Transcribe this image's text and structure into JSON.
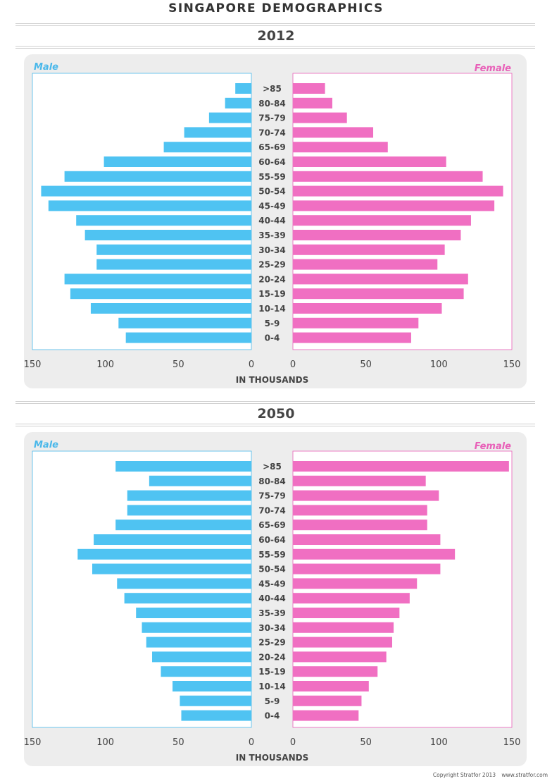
{
  "title": "SINGAPORE DEMOGRAPHICS",
  "footer": {
    "copyright": "Copyright Stratfor 2013",
    "site": "www.stratfor.com"
  },
  "colors": {
    "male": "#4fc3f2",
    "female": "#f06fc2",
    "male_label": "#4ab8ea",
    "female_label": "#e860b8"
  },
  "chart_data": [
    {
      "type": "bar",
      "title": "2012",
      "xlabel": "IN THOUSANDS",
      "xlim": [
        0,
        150
      ],
      "ticks": [
        "150",
        "100",
        "50",
        "0"
      ],
      "categories": [
        ">85",
        "80-84",
        "75-79",
        "70-74",
        "65-69",
        "60-64",
        "55-59",
        "50-54",
        "45-49",
        "40-44",
        "35-39",
        "30-34",
        "25-29",
        "20-24",
        "15-19",
        "10-14",
        "5-9",
        "0-4"
      ],
      "series": [
        {
          "name": "Male",
          "values": [
            11,
            18,
            29,
            46,
            60,
            101,
            128,
            144,
            139,
            120,
            114,
            106,
            106,
            128,
            124,
            110,
            91,
            86
          ]
        },
        {
          "name": "Female",
          "values": [
            22,
            27,
            37,
            55,
            65,
            105,
            130,
            144,
            138,
            122,
            115,
            104,
            99,
            120,
            117,
            102,
            86,
            81
          ]
        }
      ]
    },
    {
      "type": "bar",
      "title": "2050",
      "xlabel": "IN THOUSANDS",
      "xlim": [
        0,
        150
      ],
      "ticks": [
        "150",
        "100",
        "50",
        "0"
      ],
      "categories": [
        ">85",
        "80-84",
        "75-79",
        "70-74",
        "65-69",
        "60-64",
        "55-59",
        "50-54",
        "45-49",
        "40-44",
        "35-39",
        "30-34",
        "25-29",
        "20-24",
        "15-19",
        "10-14",
        "5-9",
        "0-4"
      ],
      "series": [
        {
          "name": "Male",
          "values": [
            93,
            70,
            85,
            85,
            93,
            108,
            119,
            109,
            92,
            87,
            79,
            75,
            72,
            68,
            62,
            54,
            49,
            48
          ]
        },
        {
          "name": "Female",
          "values": [
            148,
            91,
            100,
            92,
            92,
            101,
            111,
            101,
            85,
            80,
            73,
            69,
            68,
            64,
            58,
            52,
            47,
            45
          ]
        }
      ]
    }
  ]
}
